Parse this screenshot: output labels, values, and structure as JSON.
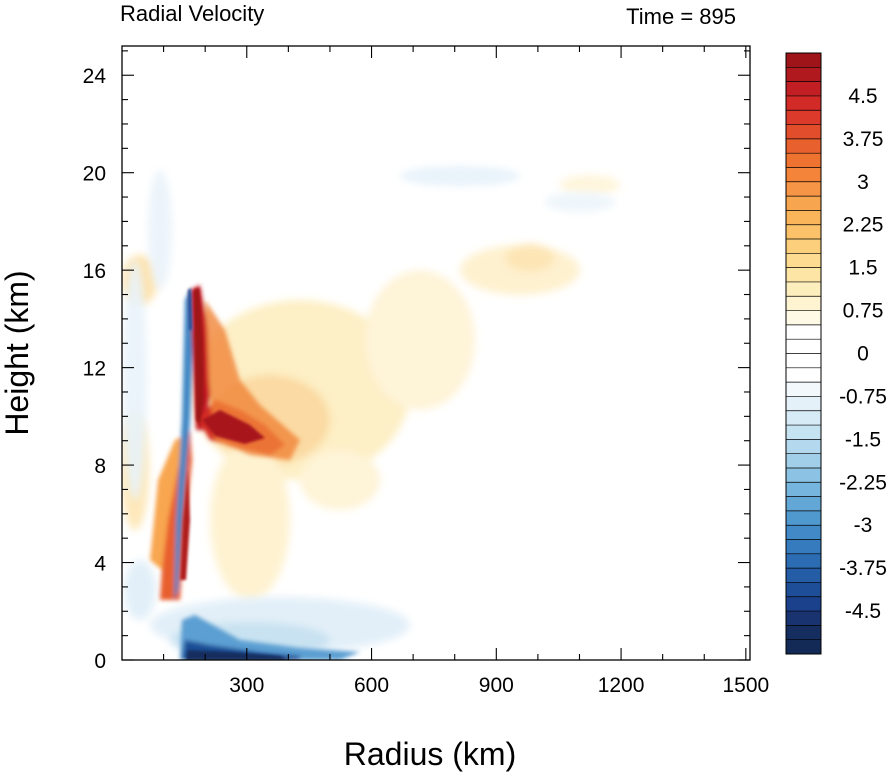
{
  "chart_data": {
    "type": "heatmap",
    "title": "Radial Velocity",
    "time_label": "Time = 895",
    "xlabel": "Radius (km)",
    "ylabel": "Height (km)",
    "xlim": [
      0,
      1510
    ],
    "ylim": [
      0,
      25.2
    ],
    "x_ticks": [
      300,
      600,
      900,
      1200,
      1500
    ],
    "y_ticks": [
      0,
      4,
      8,
      12,
      16,
      20,
      24
    ],
    "colorbar": {
      "min": -5.25,
      "max": 5.25,
      "step": 0.25,
      "labels": [
        4.5,
        3.75,
        3,
        2.25,
        1.5,
        0.75,
        0,
        -0.75,
        -1.5,
        -2.25,
        -3,
        -3.75,
        -4.5
      ],
      "colors_top_to_bottom": [
        "#9e1418",
        "#b01a1f",
        "#c21f25",
        "#d12a27",
        "#dc3a2b",
        "#e24d2c",
        "#e8602e",
        "#ef7330",
        "#f3843a",
        "#f69545",
        "#f8a54f",
        "#fab45a",
        "#fbc26a",
        "#fccf7c",
        "#fddb90",
        "#fde5a6",
        "#fdeebd",
        "#fef4d2",
        "#fefae6",
        "#ffffff",
        "#ffffff",
        "#ffffff",
        "#ffffff",
        "#f2f8fc",
        "#e5f1f9",
        "#d6ebf6",
        "#c6e3f2",
        "#b4d9ee",
        "#a1cee9",
        "#8cc2e3",
        "#76b5dd",
        "#62a7d6",
        "#5099cf",
        "#418ac7",
        "#367bbd",
        "#2c6cb2",
        "#245ca6",
        "#1f4e99",
        "#1b408c",
        "#183370",
        "#152e5f",
        "#122a55"
      ]
    },
    "features": [
      {
        "type": "outflow",
        "sign": "positive",
        "x": [
          185,
          215
        ],
        "y": [
          9.5,
          15.5
        ],
        "max_value": 5.0
      },
      {
        "type": "outflow",
        "sign": "positive",
        "x": [
          200,
          290
        ],
        "y": [
          8.8,
          10.2
        ],
        "max_value": 5.0
      },
      {
        "type": "inflow",
        "sign": "negative",
        "x": [
          180,
          320
        ],
        "y": [
          0,
          0.6
        ],
        "max_value": -5.0
      },
      {
        "type": "updraft_edge",
        "sign": "positive",
        "x": [
          150,
          180
        ],
        "y": [
          2,
          9.5
        ],
        "max_value": 4.5
      }
    ]
  }
}
